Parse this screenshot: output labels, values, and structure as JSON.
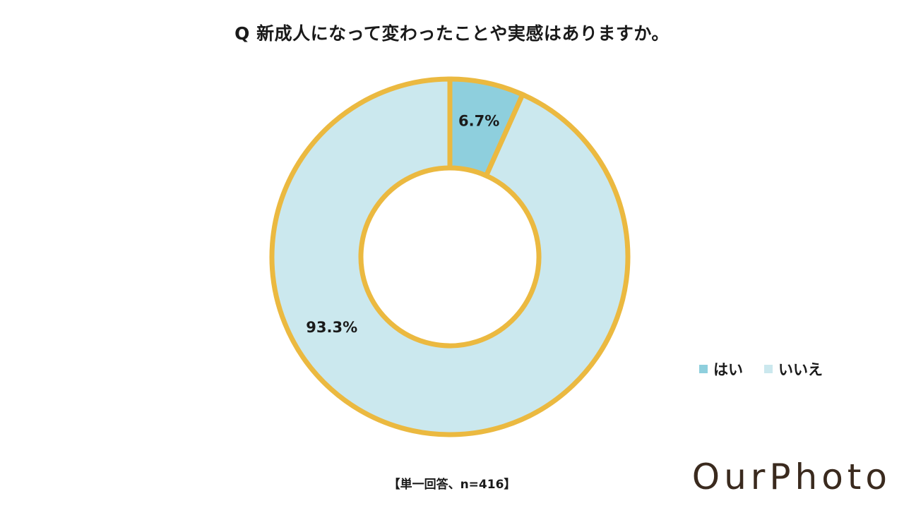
{
  "title": "Q 新成人になって変わったことや実感はありますか。",
  "note": "【単一回答、n=416】",
  "logo": "OurPhoto",
  "colors": {
    "yes": "#8ECFDD",
    "no": "#CBE8EE",
    "border": "#EBB940"
  },
  "chart_data": {
    "type": "pie",
    "variant": "donut",
    "categories": [
      "はい",
      "いいえ"
    ],
    "values": [
      6.7,
      93.3
    ],
    "labels": [
      "6.7%",
      "93.3%"
    ],
    "legend_position": "bottom-right",
    "slice_colors": [
      "#8ECFDD",
      "#CBE8EE"
    ]
  }
}
